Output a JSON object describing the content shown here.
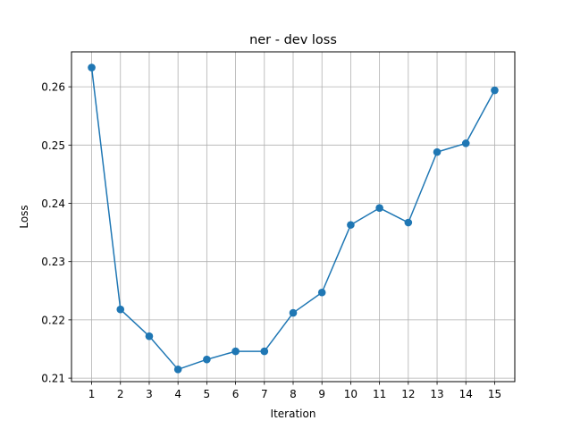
{
  "chart_data": {
    "type": "line",
    "title": "ner - dev loss",
    "xlabel": "Iteration",
    "ylabel": "Loss",
    "x": [
      1,
      2,
      3,
      4,
      5,
      6,
      7,
      8,
      9,
      10,
      11,
      12,
      13,
      14,
      15
    ],
    "series": [
      {
        "values": [
          0.2633,
          0.2218,
          0.2172,
          0.2115,
          0.2132,
          0.2146,
          0.2146,
          0.2212,
          0.2247,
          0.2363,
          0.2392,
          0.2367,
          0.2488,
          0.2503,
          0.2594
        ],
        "color": "#1f77b4",
        "marker": "circle"
      }
    ],
    "xticks": [
      "1",
      "2",
      "3",
      "4",
      "5",
      "6",
      "7",
      "8",
      "9",
      "10",
      "11",
      "12",
      "13",
      "14",
      "15"
    ],
    "yticks": [
      "0.21",
      "0.22",
      "0.23",
      "0.24",
      "0.25",
      "0.26"
    ],
    "xlim": [
      0.3,
      15.7
    ],
    "ylim": [
      0.2094,
      0.266
    ],
    "grid": true,
    "legend": "none"
  }
}
